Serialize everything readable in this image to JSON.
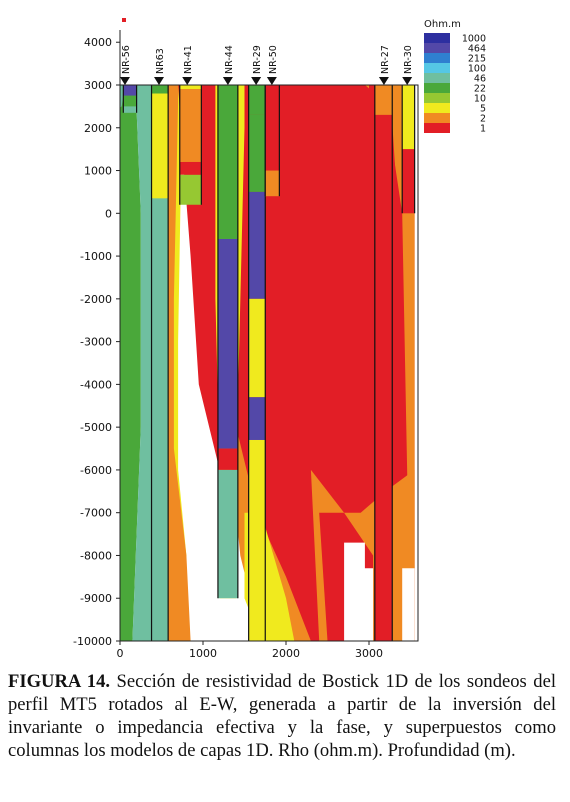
{
  "chart_data": {
    "type": "heatmap",
    "title": "",
    "xlabel": "",
    "ylabel": "",
    "xlim": [
      0,
      3550
    ],
    "ylim": [
      -10000,
      4300
    ],
    "x_ticks": [
      0,
      1000,
      2000,
      3000
    ],
    "y_ticks": [
      4000,
      3000,
      2000,
      1000,
      0,
      -1000,
      -2000,
      -3000,
      -4000,
      -5000,
      -6000,
      -7000,
      -8000,
      -9000,
      -10000
    ],
    "surface_elevation": 3000,
    "legend": {
      "title": "Ohm.m",
      "placement": "top-right",
      "levels": [
        {
          "label": "1000",
          "color": "#2d2fa0"
        },
        {
          "label": "464",
          "color": "#5348a8"
        },
        {
          "label": "215",
          "color": "#2f7fd0"
        },
        {
          "label": "100",
          "color": "#55c7e5"
        },
        {
          "label": "46",
          "color": "#6fbfa0"
        },
        {
          "label": "22",
          "color": "#4aa83a"
        },
        {
          "label": "10",
          "color": "#96c832"
        },
        {
          "label": "5",
          "color": "#f0ea1e"
        },
        {
          "label": "2",
          "color": "#f08a23"
        },
        {
          "label": "1",
          "color": "#e21e26"
        }
      ]
    },
    "background_zones": [
      {
        "color": "#4aa83a",
        "polygon": [
          [
            -50,
            3000
          ],
          [
            200,
            3000
          ],
          [
            200,
            2400
          ],
          [
            250,
            0
          ],
          [
            250,
            -5000
          ],
          [
            150,
            -10000
          ],
          [
            -50,
            -10000
          ]
        ]
      },
      {
        "color": "#6fbfa0",
        "polygon": [
          [
            -50,
            3000
          ],
          [
            60,
            3000
          ],
          [
            20,
            2500
          ],
          [
            -50,
            2400
          ]
        ]
      },
      {
        "color": "#6fbfa0",
        "polygon": [
          [
            200,
            3000
          ],
          [
            400,
            3000
          ],
          [
            400,
            -10000
          ],
          [
            150,
            -10000
          ],
          [
            250,
            -5000
          ],
          [
            250,
            0
          ],
          [
            200,
            2400
          ]
        ]
      },
      {
        "color": "#f0ea1e",
        "polygon": [
          [
            400,
            3000
          ],
          [
            800,
            3000
          ],
          [
            740,
            1500
          ],
          [
            700,
            -3000
          ],
          [
            700,
            -6000
          ],
          [
            800,
            -8000
          ],
          [
            800,
            -10000
          ],
          [
            400,
            -10000
          ]
        ]
      },
      {
        "color": "#f08a23",
        "polygon": [
          [
            550,
            3000
          ],
          [
            700,
            3000
          ],
          [
            700,
            2600
          ],
          [
            650,
            -2000
          ],
          [
            650,
            -5500
          ],
          [
            800,
            -8000
          ],
          [
            850,
            -10000
          ],
          [
            580,
            -10000
          ],
          [
            560,
            -7000
          ]
        ]
      },
      {
        "color": "#e21e26",
        "polygon": [
          [
            700,
            3000
          ],
          [
            2200,
            3000
          ],
          [
            3550,
            3000
          ],
          [
            3550,
            -10000
          ],
          [
            1800,
            -10000
          ],
          [
            1500,
            -7000
          ],
          [
            1200,
            -6000
          ],
          [
            950,
            -4000
          ],
          [
            850,
            -1000
          ],
          [
            750,
            1500
          ]
        ]
      },
      {
        "color": "#f0ea1e",
        "polygon": [
          [
            1150,
            3000
          ],
          [
            1500,
            3000
          ],
          [
            1500,
            2000
          ],
          [
            1400,
            -6000
          ],
          [
            1400,
            -9000
          ],
          [
            1200,
            -9000
          ],
          [
            1200,
            -6000
          ],
          [
            1150,
            -2000
          ]
        ]
      },
      {
        "color": "#f08a23",
        "polygon": [
          [
            1300,
            -5000
          ],
          [
            1400,
            -5000
          ],
          [
            1650,
            -7000
          ],
          [
            2000,
            -8500
          ],
          [
            2300,
            -10000
          ],
          [
            1700,
            -10000
          ],
          [
            1450,
            -8000
          ]
        ]
      },
      {
        "color": "#f0ea1e",
        "polygon": [
          [
            1500,
            -7000
          ],
          [
            1700,
            -7000
          ],
          [
            2000,
            -9000
          ],
          [
            2100,
            -10000
          ],
          [
            1700,
            -10000
          ],
          [
            1500,
            -9000
          ]
        ]
      },
      {
        "color": "#f0ea1e",
        "polygon": [
          [
            3300,
            3000
          ],
          [
            3550,
            3000
          ],
          [
            3550,
            1000
          ],
          [
            3450,
            1500
          ]
        ]
      },
      {
        "color": "#f08a23",
        "polygon": [
          [
            2950,
            3000
          ],
          [
            3400,
            3000
          ],
          [
            3550,
            1500
          ],
          [
            3550,
            -10000
          ],
          [
            3500,
            -10000
          ],
          [
            3450,
            -5000
          ],
          [
            3400,
            0
          ],
          [
            3200,
            2600
          ]
        ]
      },
      {
        "color": "#e21e26",
        "polygon": [
          [
            3000,
            3000
          ],
          [
            3250,
            3000
          ],
          [
            3350,
            0
          ],
          [
            3400,
            -5000
          ],
          [
            3450,
            -10000
          ],
          [
            3000,
            -10000
          ]
        ]
      },
      {
        "color": "#f08a23",
        "polygon": [
          [
            2300,
            -6000
          ],
          [
            2700,
            -7000
          ],
          [
            2900,
            -7000
          ],
          [
            3200,
            -6500
          ],
          [
            3550,
            -6000
          ],
          [
            3550,
            -10000
          ],
          [
            2400,
            -10000
          ]
        ]
      },
      {
        "color": "#e21e26",
        "polygon": [
          [
            2400,
            -7000
          ],
          [
            2700,
            -7000
          ],
          [
            3050,
            -8000
          ],
          [
            3050,
            -10000
          ],
          [
            2500,
            -10000
          ]
        ]
      },
      {
        "color": "#ffffff",
        "polygon": [
          [
            2700,
            -7700
          ],
          [
            2950,
            -7700
          ],
          [
            2950,
            -8300
          ],
          [
            3050,
            -8300
          ],
          [
            3050,
            -10000
          ],
          [
            2700,
            -10000
          ]
        ]
      },
      {
        "color": "#ffffff",
        "polygon": [
          [
            3400,
            -8300
          ],
          [
            3550,
            -8300
          ],
          [
            3550,
            -10000
          ],
          [
            3400,
            -10000
          ]
        ]
      }
    ],
    "series": [
      {
        "name": "NR-56",
        "x_range": [
          40,
          200
        ],
        "label_x": 60,
        "layers": [
          {
            "top": 3000,
            "bottom": 2750,
            "color": "#5348a8"
          },
          {
            "top": 2750,
            "bottom": 2500,
            "color": "#4aa83a"
          },
          {
            "top": 2500,
            "bottom": 2350,
            "color": "#6fbfa0"
          }
        ]
      },
      {
        "name": "NR63",
        "x_range": [
          380,
          580
        ],
        "label_x": 470,
        "layers": [
          {
            "top": 3000,
            "bottom": 2800,
            "color": "#4aa83a"
          },
          {
            "top": 2800,
            "bottom": 350,
            "color": "#f0ea1e"
          },
          {
            "top": 350,
            "bottom": -10000,
            "color": "#6fbfa0"
          }
        ]
      },
      {
        "name": "NR-41",
        "x_range": [
          720,
          980
        ],
        "label_x": 810,
        "layers": [
          {
            "top": 3000,
            "bottom": 2900,
            "color": "#f0ea1e"
          },
          {
            "top": 2900,
            "bottom": 1200,
            "color": "#f08a23"
          },
          {
            "top": 1200,
            "bottom": 900,
            "color": "#e21e26"
          },
          {
            "top": 900,
            "bottom": 200,
            "color": "#96c832"
          }
        ]
      },
      {
        "name": "NR-44",
        "x_range": [
          1180,
          1420
        ],
        "label_x": 1300,
        "layers": [
          {
            "top": 3000,
            "bottom": -600,
            "color": "#4aa83a"
          },
          {
            "top": -600,
            "bottom": -5500,
            "color": "#5348a8"
          },
          {
            "top": -5500,
            "bottom": -6000,
            "color": "#e21e26"
          },
          {
            "top": -6000,
            "bottom": -9000,
            "color": "#6fbfa0"
          }
        ]
      },
      {
        "name": "NR-29",
        "x_range": [
          1550,
          1750
        ],
        "label_x": 1640,
        "layers": [
          {
            "top": 3000,
            "bottom": 2300,
            "color": "#4aa83a"
          },
          {
            "top": 2300,
            "bottom": 500,
            "color": "#4aa83a"
          },
          {
            "top": 500,
            "bottom": -2000,
            "color": "#5348a8"
          },
          {
            "top": -2000,
            "bottom": -4300,
            "color": "#f0ea1e"
          },
          {
            "top": -4300,
            "bottom": -5300,
            "color": "#5348a8"
          },
          {
            "top": -5300,
            "bottom": -10000,
            "color": "#f0ea1e"
          }
        ]
      },
      {
        "name": "NR-50",
        "x_range": [
          1750,
          1920
        ],
        "label_x": 1830,
        "layers": [
          {
            "top": 3000,
            "bottom": 1000,
            "color": "#e21e26"
          },
          {
            "top": 1000,
            "bottom": 400,
            "color": "#f08a23"
          }
        ]
      },
      {
        "name": "NR-27",
        "x_range": [
          3070,
          3280
        ],
        "label_x": 3180,
        "layers": [
          {
            "top": 3000,
            "bottom": 2300,
            "color": "#f08a23"
          },
          {
            "top": 2300,
            "bottom": -10000,
            "color": "#e21e26"
          }
        ]
      },
      {
        "name": "NR-30",
        "x_range": [
          3400,
          3550
        ],
        "label_x": 3460,
        "layers": [
          {
            "top": 3000,
            "bottom": 1500,
            "color": "#f0ea1e"
          },
          {
            "top": 1500,
            "bottom": 0,
            "color": "#e21e26"
          }
        ]
      }
    ]
  },
  "caption": {
    "label": "FIGURA 14.",
    "text": " Sección de resistividad de Bostick 1D de los sondeos del perfil MT5 rotados al E-W, generada a partir de la inversión del invariante o impedancia efectiva y la fase, y superpuestos como columnas los modelos de capas 1D. Rho (ohm.m). Profundidad (m)."
  }
}
